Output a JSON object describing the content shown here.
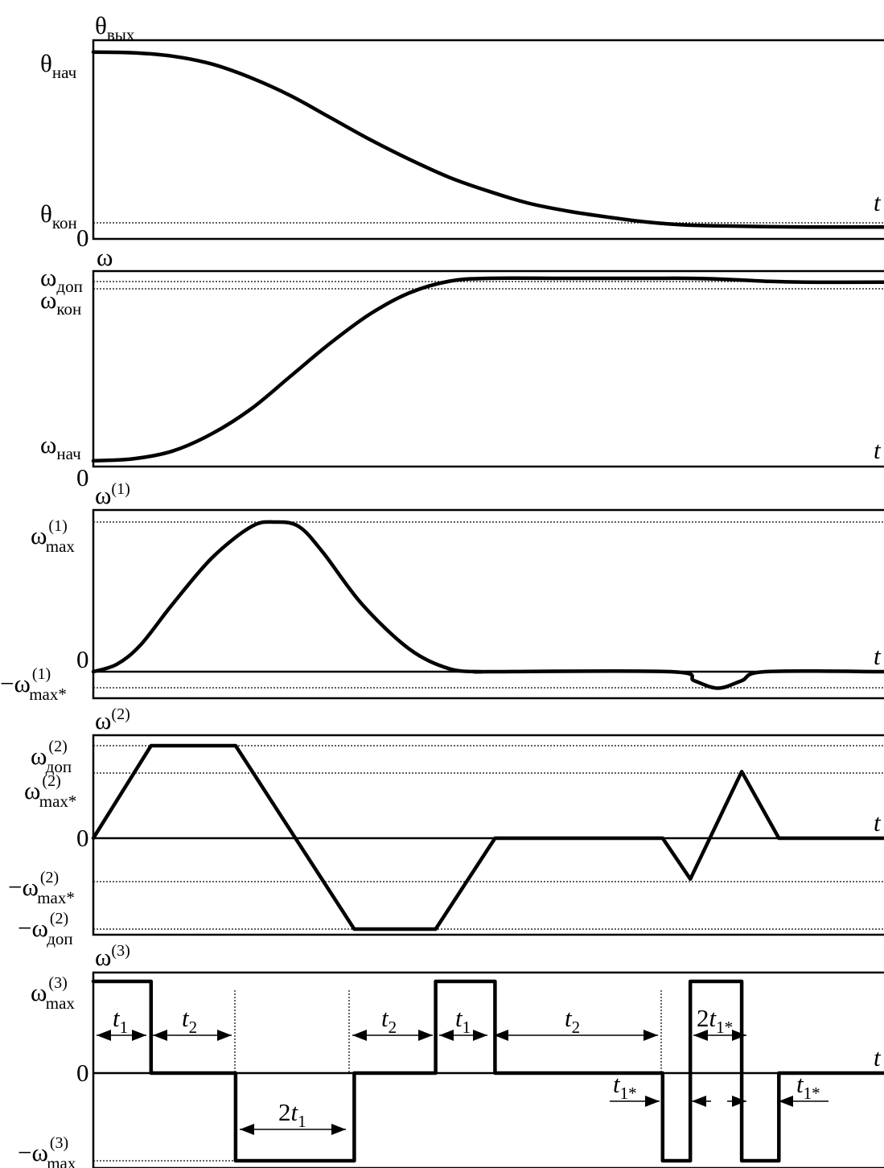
{
  "chart_data": [
    {
      "type": "line",
      "title": "θвых",
      "ylabel": "θвых",
      "xlabel": "t",
      "ytick_labels": [
        "θнач",
        "θкон",
        "0"
      ],
      "x": [
        0,
        0.05,
        0.1,
        0.15,
        0.2,
        0.25,
        0.3,
        0.35,
        0.4,
        0.45,
        0.5,
        0.55,
        0.6,
        0.65,
        0.7,
        0.75,
        0.8,
        0.85,
        0.9,
        0.95,
        1.0
      ],
      "y": [
        0.94,
        0.937,
        0.92,
        0.88,
        0.81,
        0.72,
        0.61,
        0.5,
        0.4,
        0.31,
        0.24,
        0.18,
        0.14,
        0.11,
        0.085,
        0.07,
        0.065,
        0.062,
        0.06,
        0.06,
        0.06
      ],
      "ylim": [
        0,
        1
      ]
    },
    {
      "type": "line",
      "ylabel": "ω",
      "xlabel": "t",
      "ytick_labels": [
        "ωдоп",
        "ωкон",
        "ωнач",
        "0"
      ],
      "x": [
        0,
        0.05,
        0.1,
        0.15,
        0.2,
        0.25,
        0.3,
        0.35,
        0.4,
        0.45,
        0.5,
        0.6,
        0.7,
        0.75,
        0.8,
        0.85,
        0.9,
        1.0
      ],
      "y": [
        0.03,
        0.04,
        0.08,
        0.17,
        0.3,
        0.47,
        0.64,
        0.79,
        0.9,
        0.96,
        0.975,
        0.975,
        0.975,
        0.975,
        0.97,
        0.96,
        0.955,
        0.955
      ],
      "ylim": [
        0,
        1
      ]
    },
    {
      "type": "line",
      "ylabel": "ω(1)",
      "xlabel": "t",
      "ytick_labels": [
        "ω(1)max",
        "0",
        "−ω(1)max*"
      ],
      "x": [
        0,
        0.03,
        0.06,
        0.1,
        0.15,
        0.2,
        0.23,
        0.26,
        0.29,
        0.34,
        0.4,
        0.45,
        0.49,
        0.5,
        0.73,
        0.76,
        0.79,
        0.82,
        0.85,
        1.0
      ],
      "y": [
        0,
        0.05,
        0.18,
        0.45,
        0.76,
        0.97,
        1.0,
        0.97,
        0.8,
        0.45,
        0.15,
        0.02,
        0,
        0,
        0,
        -0.06,
        -0.11,
        -0.06,
        0,
        0
      ],
      "ylim": [
        -0.15,
        1.1
      ]
    },
    {
      "type": "line",
      "ylabel": "ω(2)",
      "xlabel": "t",
      "ytick_labels": [
        "ω(2)доп",
        "ω(2)max*",
        "0",
        "−ω(2)max*",
        "−ω(2)доп"
      ],
      "x": [
        0,
        0.073,
        0.18,
        0.33,
        0.433,
        0.508,
        0.72,
        0.755,
        0.82,
        0.867,
        1.0
      ],
      "y": [
        0,
        1,
        1,
        -1,
        -1,
        0,
        0,
        -0.45,
        0.72,
        0,
        0
      ],
      "ylim": [
        -1.1,
        1.1
      ]
    },
    {
      "type": "line",
      "ylabel": "ω(3)",
      "xlabel": "t",
      "ytick_labels": [
        "ω(3)max",
        "0",
        "−ω(3)max"
      ],
      "x": [
        0,
        0.073,
        0.073,
        0.18,
        0.18,
        0.33,
        0.33,
        0.433,
        0.433,
        0.508,
        0.508,
        0.72,
        0.72,
        0.755,
        0.755,
        0.82,
        0.82,
        0.867,
        0.867,
        1.0
      ],
      "y": [
        1,
        1,
        0,
        0,
        -1,
        -1,
        0,
        0,
        1,
        1,
        0,
        0,
        -1,
        -1,
        1,
        1,
        -1,
        -1,
        0,
        0
      ],
      "ylim": [
        -1.1,
        1.1
      ],
      "annotations": [
        "t1",
        "t2",
        "2t1",
        "t2",
        "t1",
        "t2",
        "2t1*",
        "t1*",
        "t1*"
      ]
    }
  ]
}
